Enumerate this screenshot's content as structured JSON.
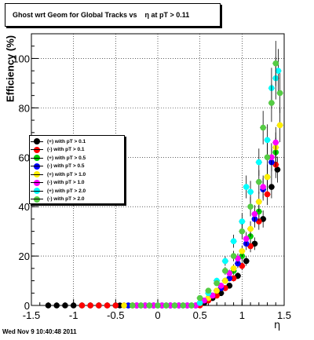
{
  "title": "Ghost wrt Geom for Global Tracks vs    η at pT > 0.11",
  "footer": "Wed Nov  9 10:40:48 2011",
  "chart_data": {
    "type": "scatter",
    "title": "Ghost wrt Geom for Global Tracks vs    η at pT > 0.11",
    "xlabel": "η",
    "ylabel": "Efficiency (%)",
    "xlim": [
      -1.5,
      1.5
    ],
    "ylim": [
      0,
      110
    ],
    "xticks": [
      "-1.5",
      "-1",
      "-0.5",
      "0",
      "0.5",
      "1",
      "1.5"
    ],
    "yticks": [
      "0",
      "20",
      "40",
      "60",
      "80",
      "100"
    ],
    "grid": true,
    "legend_position": "left-middle",
    "series": [
      {
        "name": "(+) with pT > 0.1",
        "color": "#000000",
        "x": [
          -1.3,
          -1.2,
          -1.1,
          -1.0,
          -0.9,
          -0.8,
          -0.7,
          -0.6,
          -0.5,
          -0.45,
          -0.35,
          -0.25,
          -0.15,
          -0.05,
          0.05,
          0.15,
          0.25,
          0.35,
          0.45,
          0.55,
          0.65,
          0.75,
          0.85,
          0.95,
          1.05,
          1.15,
          1.25,
          1.35,
          1.42
        ],
        "y": [
          0,
          0,
          0,
          0,
          0,
          0,
          0,
          0,
          0,
          0,
          0,
          0,
          0,
          0,
          0,
          0,
          0,
          0,
          0,
          1,
          3,
          5,
          8,
          12,
          18,
          25,
          35,
          48,
          55
        ]
      },
      {
        "name": "(-) with pT > 0.1",
        "color": "#ff0000",
        "x": [
          -0.9,
          -0.8,
          -0.7,
          -0.6,
          -0.5,
          -0.4,
          -0.3,
          -0.2,
          -0.1,
          0.0,
          0.1,
          0.2,
          0.3,
          0.4,
          0.5,
          0.6,
          0.7,
          0.8,
          0.9,
          1.0,
          1.1,
          1.2,
          1.3,
          1.4
        ],
        "y": [
          0,
          0,
          0,
          0,
          0,
          0,
          0,
          0,
          0,
          0,
          0,
          0,
          0,
          0,
          0,
          2,
          4,
          7,
          11,
          16,
          24,
          34,
          45,
          57
        ]
      },
      {
        "name": "(+) with pT > 0.5",
        "color": "#00cc00",
        "x": [
          -0.3,
          -0.2,
          -0.1,
          0.0,
          0.1,
          0.2,
          0.3,
          0.4,
          0.5,
          0.6,
          0.7,
          0.8,
          0.9,
          1.0,
          1.1,
          1.2,
          1.3,
          1.4
        ],
        "y": [
          0,
          0,
          0,
          0,
          0,
          0,
          0,
          0,
          1,
          3,
          6,
          10,
          14,
          20,
          28,
          38,
          52,
          62
        ]
      },
      {
        "name": "(-) with pT > 0.5",
        "color": "#0000ff",
        "x": [
          -0.35,
          -0.25,
          -0.15,
          -0.05,
          0.05,
          0.15,
          0.25,
          0.35,
          0.45,
          0.55,
          0.65,
          0.75,
          0.85,
          0.95,
          1.05,
          1.15,
          1.25,
          1.35
        ],
        "y": [
          0,
          0,
          0,
          0,
          0,
          0,
          0,
          0,
          0,
          2,
          4,
          7,
          11,
          17,
          25,
          35,
          47,
          58
        ]
      },
      {
        "name": "(+) with pT > 1.0",
        "color": "#ffee00",
        "x": [
          -0.4,
          -0.3,
          -0.2,
          -0.1,
          0.0,
          0.1,
          0.2,
          0.3,
          0.4,
          0.5,
          0.6,
          0.7,
          0.8,
          0.9,
          1.0,
          1.1,
          1.2,
          1.3,
          1.4,
          1.45
        ],
        "y": [
          0,
          0,
          0,
          0,
          0,
          0,
          0,
          0,
          0,
          1,
          3,
          6,
          10,
          15,
          22,
          31,
          42,
          52,
          64,
          73
        ]
      },
      {
        "name": "(-) with pT > 1.0",
        "color": "#ff00ff",
        "x": [
          -0.25,
          -0.15,
          -0.05,
          0.05,
          0.15,
          0.25,
          0.35,
          0.45,
          0.55,
          0.65,
          0.75,
          0.85,
          0.95,
          1.05,
          1.15,
          1.25,
          1.35,
          1.4
        ],
        "y": [
          0,
          0,
          0,
          0,
          0,
          0,
          0,
          0,
          2,
          4,
          8,
          13,
          19,
          27,
          37,
          48,
          60,
          66
        ]
      },
      {
        "name": "(+) with pT > 2.0",
        "color": "#00ffff",
        "x": [
          -0.2,
          -0.1,
          0.0,
          0.1,
          0.2,
          0.3,
          0.4,
          0.5,
          0.6,
          0.7,
          0.8,
          0.9,
          1.0,
          1.05,
          1.1,
          1.2,
          1.3,
          1.35,
          1.4,
          1.43
        ],
        "y": [
          0,
          0,
          0,
          0,
          0,
          0,
          0,
          1,
          5,
          10,
          18,
          26,
          34,
          48,
          46,
          58,
          67,
          88,
          92,
          95
        ]
      },
      {
        "name": "(-) with pT > 2.0",
        "color": "#55cc44",
        "x": [
          -0.3,
          -0.2,
          -0.1,
          0.0,
          0.1,
          0.2,
          0.3,
          0.4,
          0.5,
          0.6,
          0.7,
          0.8,
          0.9,
          1.0,
          1.1,
          1.2,
          1.25,
          1.3,
          1.35,
          1.4,
          1.45
        ],
        "y": [
          0,
          0,
          0,
          0,
          0,
          0,
          0,
          0,
          3,
          6,
          9,
          14,
          20,
          30,
          40,
          50,
          72,
          60,
          82,
          98,
          86
        ]
      }
    ]
  }
}
